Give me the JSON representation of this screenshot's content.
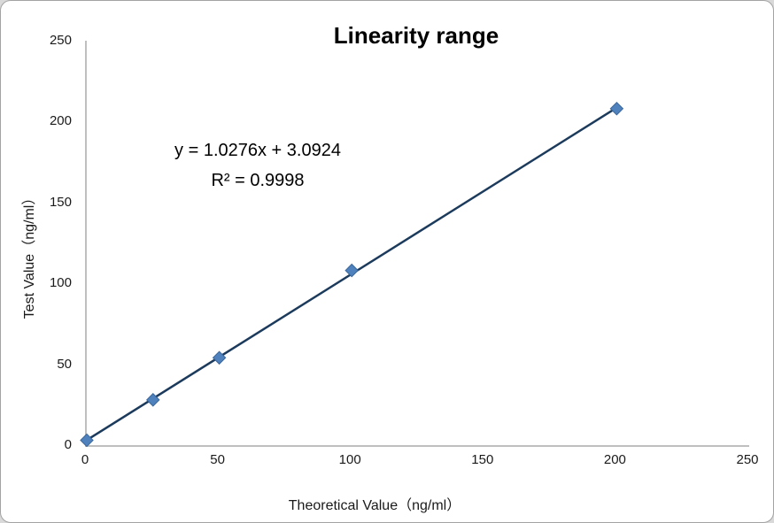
{
  "chart_data": {
    "type": "scatter",
    "title": "Linearity range",
    "xlabel": "Theoretical Value（ng/ml）",
    "ylabel": "Test Value（ng/ml）",
    "points": [
      [
        0,
        3
      ],
      [
        25,
        28
      ],
      [
        50,
        54
      ],
      [
        100,
        108
      ],
      [
        200,
        208
      ]
    ],
    "trendline": {
      "slope": 1.0276,
      "intercept": 3.0924,
      "x_start": 0,
      "x_end": 200,
      "equation": "y = 1.0276x + 3.0924",
      "r_squared": "R² = 0.9998"
    },
    "xlim": [
      0,
      250
    ],
    "ylim": [
      0,
      250
    ],
    "xticks": [
      0,
      50,
      100,
      150,
      200,
      250
    ],
    "yticks": [
      0,
      50,
      100,
      150,
      200,
      250
    ],
    "grid": false,
    "legend": false,
    "colors": {
      "marker_fill": "#4f81bd",
      "marker_border": "#3a679b",
      "trendline": "#1b3a5c",
      "axis_line": "#bfbfbf"
    }
  }
}
